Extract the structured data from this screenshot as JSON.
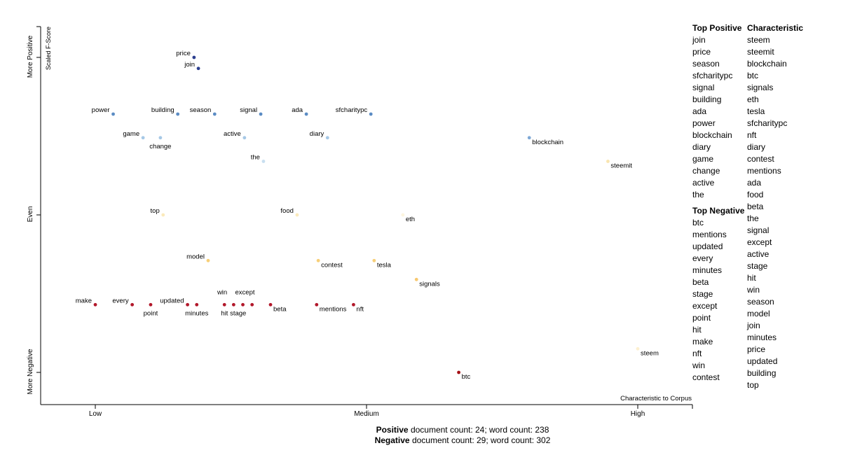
{
  "chart_data": {
    "type": "scatter",
    "x_axis": {
      "title": "Characteristic to Corpus",
      "ticks": [
        {
          "label": "Low",
          "value": 0
        },
        {
          "label": "Medium",
          "value": 0.5
        },
        {
          "label": "High",
          "value": 1
        }
      ],
      "range": [
        -0.1,
        1.1
      ]
    },
    "y_axis": {
      "title": "Scaled F-Score",
      "ticks": [
        {
          "label": "More Negative",
          "value": 0
        },
        {
          "label": "Even",
          "value": 0.5
        },
        {
          "label": "More Positive",
          "value": 1
        }
      ],
      "range": [
        -0.1,
        1.1
      ]
    },
    "points": [
      {
        "term": "price",
        "x": 0.182,
        "y": 1.0,
        "color": "#2c3f8f",
        "label_side": "left"
      },
      {
        "term": "join",
        "x": 0.19,
        "y": 0.965,
        "color": "#2c3f8f",
        "label_side": "left"
      },
      {
        "term": "power",
        "x": 0.033,
        "y": 0.82,
        "color": "#5b8cc4",
        "label_side": "left"
      },
      {
        "term": "building",
        "x": 0.152,
        "y": 0.82,
        "color": "#5b8cc4",
        "label_side": "left"
      },
      {
        "term": "season",
        "x": 0.22,
        "y": 0.82,
        "color": "#5b8cc4",
        "label_side": "left"
      },
      {
        "term": "signal",
        "x": 0.305,
        "y": 0.82,
        "color": "#5b8cc4",
        "label_side": "left"
      },
      {
        "term": "ada",
        "x": 0.389,
        "y": 0.82,
        "color": "#5b8cc4",
        "label_side": "left"
      },
      {
        "term": "sfcharitypc",
        "x": 0.508,
        "y": 0.82,
        "color": "#5b8cc4",
        "label_side": "left"
      },
      {
        "term": "game",
        "x": 0.088,
        "y": 0.745,
        "color": "#a6c8e6",
        "label_side": "left"
      },
      {
        "term": "change",
        "x": 0.12,
        "y": 0.745,
        "color": "#a6c8e6",
        "label_side": "below"
      },
      {
        "term": "active",
        "x": 0.275,
        "y": 0.745,
        "color": "#a6c8e6",
        "label_side": "left"
      },
      {
        "term": "diary",
        "x": 0.428,
        "y": 0.745,
        "color": "#a6c8e6",
        "label_side": "left"
      },
      {
        "term": "blockchain",
        "x": 0.8,
        "y": 0.745,
        "color": "#7ea8d6",
        "label_side": "right"
      },
      {
        "term": "the",
        "x": 0.31,
        "y": 0.67,
        "color": "#c8dff0",
        "label_side": "left"
      },
      {
        "term": "steemit",
        "x": 0.945,
        "y": 0.67,
        "color": "#f9e5b0",
        "label_side": "right"
      },
      {
        "term": "top",
        "x": 0.125,
        "y": 0.5,
        "color": "#fbeabb",
        "label_side": "left"
      },
      {
        "term": "food",
        "x": 0.372,
        "y": 0.5,
        "color": "#fbeabb",
        "label_side": "left"
      },
      {
        "term": "eth",
        "x": 0.567,
        "y": 0.5,
        "color": "#fdf5df",
        "label_side": "right"
      },
      {
        "term": "model",
        "x": 0.208,
        "y": 0.355,
        "color": "#f7cf78",
        "label_side": "left"
      },
      {
        "term": "contest",
        "x": 0.411,
        "y": 0.355,
        "color": "#f7cf78",
        "label_side": "right"
      },
      {
        "term": "tesla",
        "x": 0.514,
        "y": 0.355,
        "color": "#f7cf78",
        "label_side": "right"
      },
      {
        "term": "signals",
        "x": 0.592,
        "y": 0.295,
        "color": "#f7c870",
        "label_side": "right"
      },
      {
        "term": "make",
        "x": 0.0,
        "y": 0.215,
        "color": "#b2182b",
        "label_side": "left"
      },
      {
        "term": "every",
        "x": 0.068,
        "y": 0.215,
        "color": "#b2182b",
        "label_side": "left"
      },
      {
        "term": "point",
        "x": 0.102,
        "y": 0.215,
        "color": "#b2182b",
        "label_side": "below"
      },
      {
        "term": "updated",
        "x": 0.17,
        "y": 0.215,
        "color": "#b2182b",
        "label_side": "left"
      },
      {
        "term": "minutes",
        "x": 0.187,
        "y": 0.215,
        "color": "#b2182b",
        "label_side": "below"
      },
      {
        "term": "win",
        "x": 0.238,
        "y": 0.215,
        "color": "#b2182b",
        "label_side": "above-left"
      },
      {
        "term": "except",
        "x": 0.272,
        "y": 0.215,
        "color": "#b2182b",
        "label_side": "above"
      },
      {
        "term": "hit stage",
        "x": 0.255,
        "y": 0.215,
        "color": "#b2182b",
        "label_side": "below"
      },
      {
        "term": "",
        "x": 0.289,
        "y": 0.215,
        "color": "#b2182b",
        "label_side": "none"
      },
      {
        "term": "beta",
        "x": 0.323,
        "y": 0.215,
        "color": "#b2182b",
        "label_side": "right"
      },
      {
        "term": "mentions",
        "x": 0.408,
        "y": 0.215,
        "color": "#b2182b",
        "label_side": "right"
      },
      {
        "term": "nft",
        "x": 0.476,
        "y": 0.215,
        "color": "#b2182b",
        "label_side": "right"
      },
      {
        "term": "btc",
        "x": 0.67,
        "y": 0.0,
        "color": "#a50f15",
        "label_side": "right"
      },
      {
        "term": "steem",
        "x": 1.0,
        "y": 0.075,
        "color": "#fdf0d0",
        "label_side": "right"
      }
    ]
  },
  "top_positive": {
    "title": "Top Positive",
    "items": [
      "join",
      "price",
      "season",
      "sfcharitypc",
      "signal",
      "building",
      "ada",
      "power",
      "blockchain",
      "diary",
      "game",
      "change",
      "active",
      "the"
    ]
  },
  "top_negative": {
    "title": "Top Negative",
    "items": [
      "btc",
      "mentions",
      "updated",
      "every",
      "minutes",
      "beta",
      "stage",
      "except",
      "point",
      "hit",
      "make",
      "nft",
      "win",
      "contest"
    ]
  },
  "characteristic": {
    "title": "Characteristic",
    "items": [
      "steem",
      "steemit",
      "blockchain",
      "btc",
      "signals",
      "eth",
      "tesla",
      "sfcharitypc",
      "nft",
      "diary",
      "contest",
      "mentions",
      "ada",
      "food",
      "beta",
      "the",
      "signal",
      "except",
      "active",
      "stage",
      "hit",
      "win",
      "season",
      "model",
      "join",
      "minutes",
      "price",
      "updated",
      "building",
      "top"
    ]
  },
  "counts": {
    "positive_label": "Positive",
    "positive_text": " document count: 24; word count: 238",
    "negative_label": "Negative",
    "negative_text": " document count: 29; word count: 302"
  }
}
